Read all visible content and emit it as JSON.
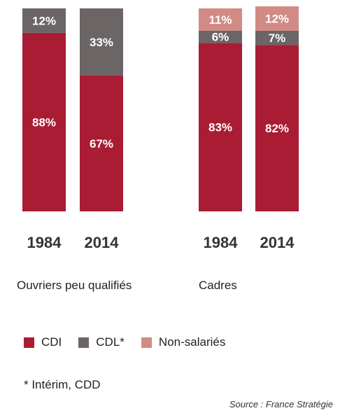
{
  "chart_data": {
    "type": "bar",
    "stacked": true,
    "colors": {
      "CDI": "#a91c34",
      "CDL*": "#6b6566",
      "Non-salariés": "#d18b84"
    },
    "groups": [
      {
        "label": "Ouvriers peu qualifiés",
        "bars": [
          {
            "year": "1984",
            "segments": [
              {
                "series": "CDI",
                "value": 88,
                "label": "88%"
              },
              {
                "series": "CDL*",
                "value": 12,
                "label": "12%"
              }
            ]
          },
          {
            "year": "2014",
            "segments": [
              {
                "series": "CDI",
                "value": 67,
                "label": "67%"
              },
              {
                "series": "CDL*",
                "value": 33,
                "label": "33%"
              }
            ]
          }
        ]
      },
      {
        "label": "Cadres",
        "bars": [
          {
            "year": "1984",
            "segments": [
              {
                "series": "CDI",
                "value": 83,
                "label": "83%"
              },
              {
                "series": "CDL*",
                "value": 6,
                "label": "6%"
              },
              {
                "series": "Non-salariés",
                "value": 11,
                "label": "11%"
              }
            ]
          },
          {
            "year": "2014",
            "segments": [
              {
                "series": "CDI",
                "value": 82,
                "label": "82%"
              },
              {
                "series": "CDL*",
                "value": 7,
                "label": "7%"
              },
              {
                "series": "Non-salariés",
                "value": 12,
                "label": "12%"
              }
            ]
          }
        ]
      }
    ],
    "legend": [
      "CDI",
      "CDL*",
      "Non-salariés"
    ],
    "legend_position": "bottom",
    "ylim": [
      0,
      100
    ],
    "grid": false
  },
  "group_labels": {
    "ouvriers": "Ouvriers peu qualifiés",
    "cadres": "Cadres"
  },
  "legend": {
    "cdi": "CDI",
    "cdl": "CDL*",
    "non_salaries": "Non-salariés"
  },
  "footnote": "* Intérim, CDD",
  "source": "Source : France Stratégie"
}
